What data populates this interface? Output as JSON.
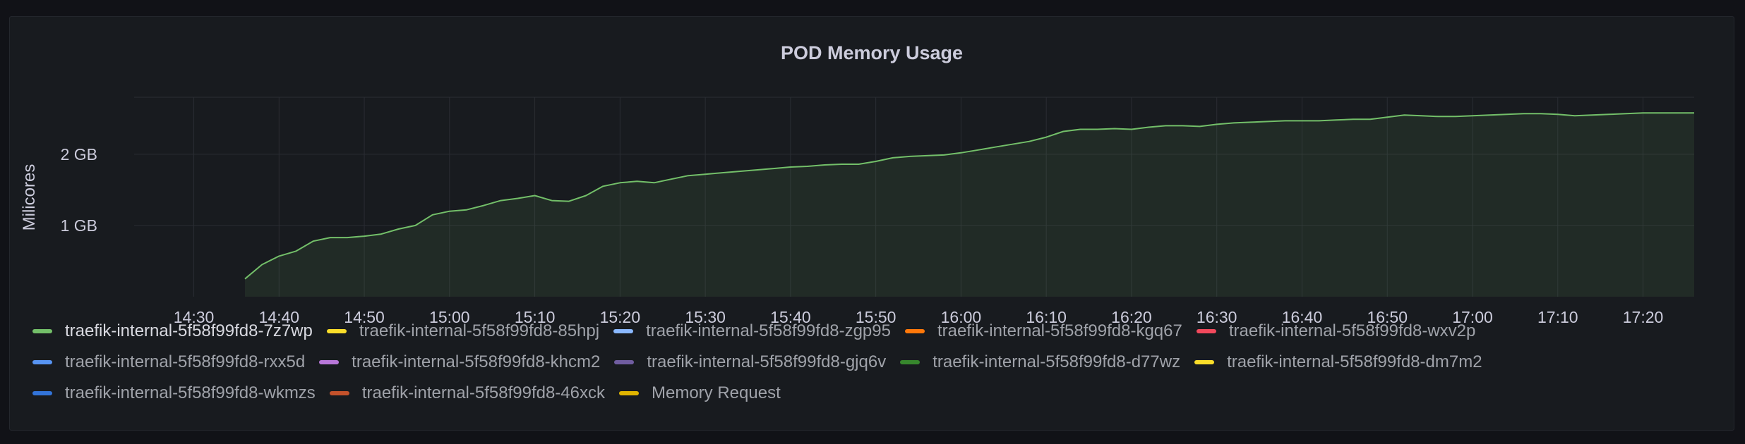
{
  "chart_data": {
    "type": "area",
    "title": "POD Memory Usage",
    "ylabel": "Milicores",
    "xlabel": "",
    "x_domain": [
      "14:23",
      "17:26"
    ],
    "ylim": [
      0,
      2.8
    ],
    "yticks": [
      1,
      2
    ],
    "ytick_labels": [
      "1 GB",
      "2 GB"
    ],
    "xtick_labels": [
      "14:30",
      "14:40",
      "14:50",
      "15:00",
      "15:10",
      "15:20",
      "15:30",
      "15:40",
      "15:50",
      "16:00",
      "16:10",
      "16:20",
      "16:30",
      "16:40",
      "16:50",
      "17:00",
      "17:10",
      "17:20"
    ],
    "grid": true,
    "legend_position": "bottom",
    "series": [
      {
        "name": "traefik-internal-5f58f99fd8-7z7wp",
        "color": "#73bf69",
        "time": [
          "14:36",
          "14:38",
          "14:40",
          "14:42",
          "14:44",
          "14:46",
          "14:48",
          "14:50",
          "14:52",
          "14:54",
          "14:56",
          "14:58",
          "15:00",
          "15:02",
          "15:04",
          "15:06",
          "15:08",
          "15:10",
          "15:12",
          "15:14",
          "15:16",
          "15:18",
          "15:20",
          "15:22",
          "15:24",
          "15:26",
          "15:28",
          "15:30",
          "15:32",
          "15:34",
          "15:36",
          "15:38",
          "15:40",
          "15:42",
          "15:44",
          "15:46",
          "15:48",
          "15:50",
          "15:52",
          "15:54",
          "15:56",
          "15:58",
          "16:00",
          "16:02",
          "16:04",
          "16:06",
          "16:08",
          "16:10",
          "16:12",
          "16:14",
          "16:16",
          "16:18",
          "16:20",
          "16:22",
          "16:24",
          "16:26",
          "16:28",
          "16:30",
          "16:32",
          "16:34",
          "16:36",
          "16:38",
          "16:40",
          "16:42",
          "16:44",
          "16:46",
          "16:48",
          "16:50",
          "16:52",
          "16:54",
          "16:56",
          "16:58",
          "17:00",
          "17:02",
          "17:04",
          "17:06",
          "17:08",
          "17:10",
          "17:12",
          "17:14",
          "17:16",
          "17:18",
          "17:20",
          "17:22",
          "17:24",
          "17:26"
        ],
        "values": [
          0.25,
          0.45,
          0.57,
          0.64,
          0.78,
          0.83,
          0.83,
          0.85,
          0.88,
          0.95,
          1.0,
          1.15,
          1.2,
          1.22,
          1.28,
          1.35,
          1.38,
          1.42,
          1.35,
          1.34,
          1.42,
          1.55,
          1.6,
          1.62,
          1.6,
          1.65,
          1.7,
          1.72,
          1.74,
          1.76,
          1.78,
          1.8,
          1.82,
          1.83,
          1.85,
          1.86,
          1.86,
          1.9,
          1.95,
          1.97,
          1.98,
          1.99,
          2.02,
          2.06,
          2.1,
          2.14,
          2.18,
          2.24,
          2.32,
          2.35,
          2.35,
          2.36,
          2.35,
          2.38,
          2.4,
          2.4,
          2.39,
          2.42,
          2.44,
          2.45,
          2.46,
          2.47,
          2.47,
          2.47,
          2.48,
          2.49,
          2.49,
          2.52,
          2.55,
          2.54,
          2.53,
          2.53,
          2.54,
          2.55,
          2.56,
          2.57,
          2.57,
          2.56,
          2.54,
          2.55,
          2.56,
          2.57,
          2.58,
          2.58,
          2.58,
          2.58
        ]
      },
      {
        "name": "traefik-internal-5f58f99fd8-85hpj",
        "color": "#fade2a"
      },
      {
        "name": "traefik-internal-5f58f99fd8-zgp95",
        "color": "#8ab8ff"
      },
      {
        "name": "traefik-internal-5f58f99fd8-kgq67",
        "color": "#ff780a"
      },
      {
        "name": "traefik-internal-5f58f99fd8-wxv2p",
        "color": "#f2495c"
      },
      {
        "name": "traefik-internal-5f58f99fd8-rxx5d",
        "color": "#5794f2"
      },
      {
        "name": "traefik-internal-5f58f99fd8-khcm2",
        "color": "#b877d9"
      },
      {
        "name": "traefik-internal-5f58f99fd8-gjq6v",
        "color": "#705da0"
      },
      {
        "name": "traefik-internal-5f58f99fd8-d77wz",
        "color": "#37872d"
      },
      {
        "name": "traefik-internal-5f58f99fd8-dm7m2",
        "color": "#fade2a"
      },
      {
        "name": "traefik-internal-5f58f99fd8-wkmzs",
        "color": "#3274d9"
      },
      {
        "name": "traefik-internal-5f58f99fd8-46xck",
        "color": "#c4522b"
      },
      {
        "name": "Memory Request",
        "color": "#e0b400"
      }
    ]
  },
  "colors": {
    "background": "#111217",
    "panel": "#181b1f",
    "grid": "#2a2d33",
    "text": "#ccccdc"
  }
}
